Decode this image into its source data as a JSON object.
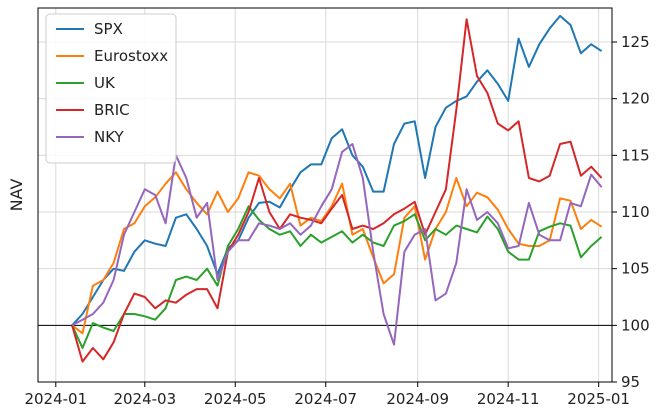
{
  "chart_data": {
    "type": "line",
    "title": "",
    "xlabel": "",
    "ylabel": "NAV",
    "y_axis_side": "right",
    "ylim": [
      95,
      128
    ],
    "yticks": [
      95,
      100,
      105,
      110,
      115,
      120,
      125
    ],
    "xlim": [
      "2023-12-20",
      "2025-01-10"
    ],
    "xticks": [
      "2024-01",
      "2024-03",
      "2024-05",
      "2024-07",
      "2024-09",
      "2024-11",
      "2025-01"
    ],
    "xtick_dates": [
      "2024-01-01",
      "2024-03-01",
      "2024-05-01",
      "2024-07-01",
      "2024-09-01",
      "2024-11-01",
      "2025-01-01"
    ],
    "reference_line": 100,
    "grid": true,
    "legend_position": "top-left",
    "x": [
      "2024-01-12",
      "2024-01-19",
      "2024-01-26",
      "2024-02-02",
      "2024-02-09",
      "2024-02-16",
      "2024-02-23",
      "2024-03-01",
      "2024-03-08",
      "2024-03-15",
      "2024-03-22",
      "2024-03-29",
      "2024-04-05",
      "2024-04-12",
      "2024-04-19",
      "2024-04-26",
      "2024-05-03",
      "2024-05-10",
      "2024-05-17",
      "2024-05-24",
      "2024-05-31",
      "2024-06-07",
      "2024-06-14",
      "2024-06-21",
      "2024-06-28",
      "2024-07-05",
      "2024-07-12",
      "2024-07-19",
      "2024-07-26",
      "2024-08-02",
      "2024-08-09",
      "2024-08-16",
      "2024-08-23",
      "2024-08-30",
      "2024-09-06",
      "2024-09-13",
      "2024-09-20",
      "2024-09-27",
      "2024-10-04",
      "2024-10-11",
      "2024-10-18",
      "2024-10-25",
      "2024-11-01",
      "2024-11-08",
      "2024-11-15",
      "2024-11-22",
      "2024-11-29",
      "2024-12-06",
      "2024-12-13",
      "2024-12-20",
      "2024-12-27",
      "2025-01-03"
    ],
    "series": [
      {
        "name": "SPX",
        "color": "#1f77b4",
        "values": [
          100.0,
          101.0,
          102.5,
          104.0,
          105.0,
          104.8,
          106.5,
          107.5,
          107.2,
          107.0,
          109.5,
          109.8,
          108.5,
          107.0,
          104.5,
          106.8,
          107.5,
          109.5,
          110.8,
          110.9,
          110.4,
          112.0,
          113.5,
          114.2,
          114.2,
          116.5,
          117.3,
          115.0,
          114.0,
          111.8,
          111.8,
          116.0,
          117.8,
          118.0,
          113.0,
          117.5,
          119.2,
          119.8,
          120.2,
          121.5,
          122.5,
          121.3,
          119.8,
          125.3,
          122.8,
          124.8,
          126.2,
          127.3,
          126.5,
          124.0,
          124.8,
          124.2
        ]
      },
      {
        "name": "Eurostoxx",
        "color": "#ff7f0e",
        "values": [
          100.0,
          99.3,
          103.5,
          104.0,
          105.5,
          108.5,
          109.0,
          110.5,
          111.3,
          112.5,
          113.5,
          112.0,
          110.8,
          109.8,
          111.8,
          110.0,
          111.2,
          113.5,
          113.2,
          112.0,
          111.2,
          112.5,
          108.8,
          109.5,
          109.2,
          110.5,
          112.5,
          108.0,
          108.5,
          106.0,
          103.7,
          104.5,
          109.5,
          110.5,
          105.8,
          108.5,
          110.0,
          113.0,
          110.5,
          111.7,
          111.3,
          110.2,
          108.5,
          107.2,
          107.0,
          107.0,
          107.5,
          111.2,
          111.0,
          108.5,
          109.3,
          108.7
        ]
      },
      {
        "name": "UK",
        "color": "#2ca02c",
        "values": [
          100.0,
          98.0,
          100.2,
          99.8,
          99.5,
          101.0,
          101.0,
          100.8,
          100.5,
          101.5,
          104.0,
          104.3,
          104.0,
          105.0,
          103.5,
          107.0,
          108.5,
          110.5,
          109.3,
          108.5,
          108.0,
          108.3,
          107.0,
          108.0,
          107.3,
          107.8,
          108.3,
          107.3,
          108.0,
          107.3,
          107.0,
          108.8,
          109.2,
          109.8,
          107.5,
          108.5,
          108.0,
          108.8,
          108.5,
          108.2,
          109.6,
          108.5,
          106.5,
          105.8,
          105.8,
          108.3,
          108.7,
          109.0,
          108.8,
          106.0,
          107.0,
          107.8
        ]
      },
      {
        "name": "BRIC",
        "color": "#d62728",
        "values": [
          100.0,
          96.8,
          98.0,
          97.0,
          98.5,
          101.0,
          102.8,
          102.5,
          101.5,
          102.2,
          102.0,
          102.7,
          103.2,
          103.2,
          101.5,
          106.5,
          108.0,
          110.0,
          113.0,
          110.0,
          108.5,
          109.8,
          109.5,
          109.3,
          109.0,
          110.3,
          111.5,
          108.5,
          108.8,
          108.5,
          109.0,
          109.8,
          110.3,
          110.9,
          108.0,
          110.0,
          112.0,
          119.0,
          127.0,
          122.0,
          120.5,
          117.8,
          117.2,
          118.0,
          113.0,
          112.7,
          113.2,
          116.0,
          116.2,
          113.2,
          114.0,
          113.0
        ]
      },
      {
        "name": "NKY",
        "color": "#9467bd",
        "values": [
          100.0,
          100.5,
          101.0,
          102.0,
          104.0,
          108.0,
          110.0,
          112.0,
          111.5,
          109.0,
          115.0,
          113.0,
          109.5,
          110.8,
          104.0,
          106.5,
          107.5,
          107.5,
          109.0,
          108.8,
          108.5,
          109.0,
          108.0,
          108.8,
          110.5,
          112.0,
          115.3,
          116.0,
          113.0,
          106.5,
          101.0,
          98.3,
          106.5,
          108.0,
          108.5,
          102.2,
          102.8,
          105.5,
          112.0,
          109.3,
          110.0,
          109.0,
          106.8,
          107.0,
          110.8,
          108.0,
          107.5,
          107.5,
          110.8,
          110.5,
          113.3,
          112.2
        ]
      }
    ]
  }
}
